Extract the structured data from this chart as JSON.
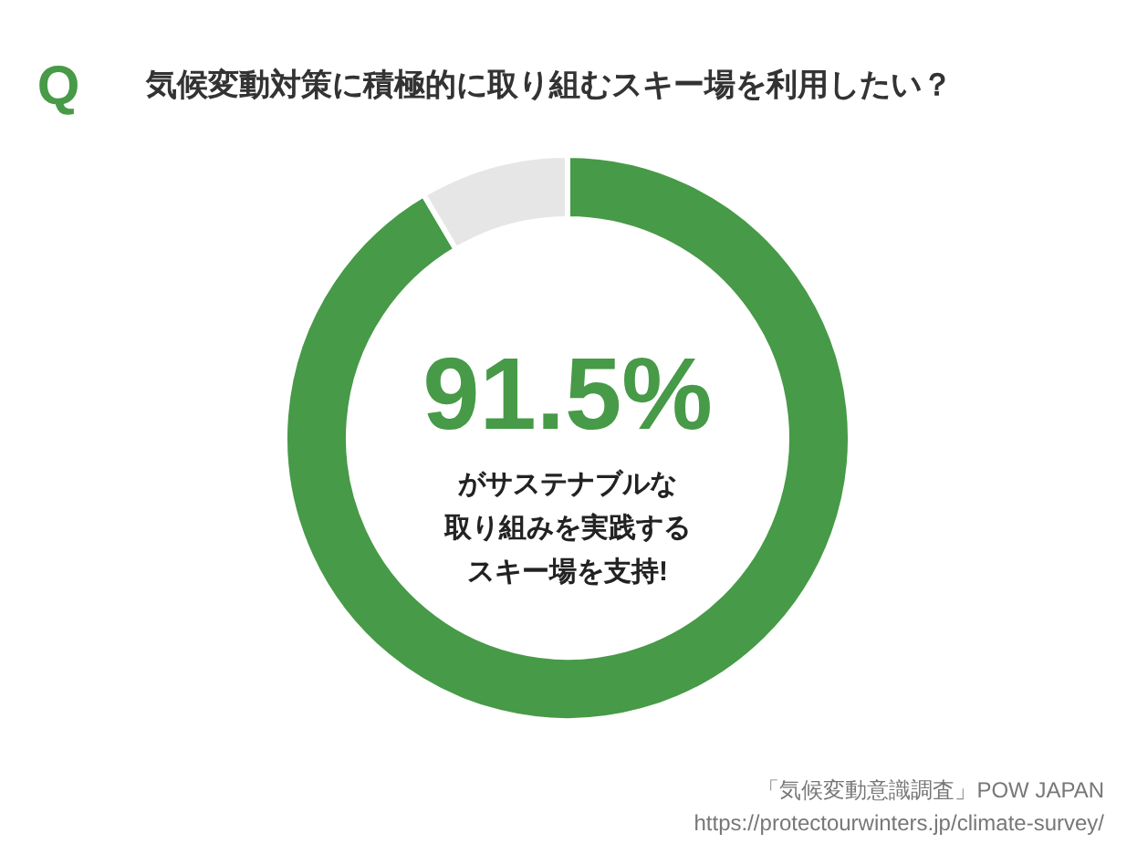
{
  "chart_data": {
    "type": "donut",
    "title": "気候変動対策に積極的に取り組むスキー場を利用したい？",
    "categories": [
      null,
      null
    ],
    "values": [
      91.5,
      8.5
    ],
    "colors": [
      "#479a47",
      "#e6e6e6"
    ],
    "value_labels": [
      "91.5%",
      null
    ],
    "annotations": [
      "Q",
      "がサステナブルな",
      "取り組みを実践する",
      "スキー場を支持!",
      "「気候変動意識調査」POW JAPAN",
      "https://protectourwinters.jp/climate-survey/"
    ]
  }
}
